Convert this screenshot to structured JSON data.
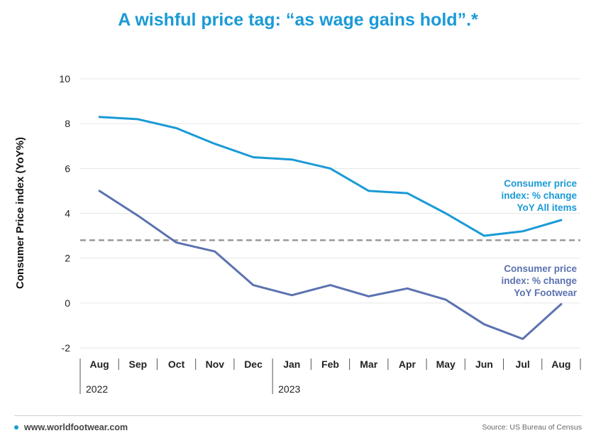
{
  "title": "A wishful price tag: “as wage gains hold”.*",
  "chart_data": {
    "type": "line",
    "ylabel": "Consumer Price index (YoY%)",
    "ylim": [
      -2,
      10
    ],
    "yticks": [
      -2,
      0,
      2,
      4,
      6,
      8,
      10
    ],
    "categories": [
      "Aug",
      "Sep",
      "Oct",
      "Nov",
      "Dec",
      "Jan",
      "Feb",
      "Mar",
      "Apr",
      "May",
      "Jun",
      "Jul",
      "Aug"
    ],
    "years": [
      {
        "label": "2022",
        "start_index": 0
      },
      {
        "label": "2023",
        "start_index": 5
      }
    ],
    "reference_line": 2.8,
    "grid": "horizontal",
    "series": [
      {
        "name": "Consumer price index: % change YoY All items",
        "label_lines": [
          "Consumer price",
          "index: % change",
          "YoY All items"
        ],
        "color": "#1a9ad6",
        "values": [
          8.3,
          8.2,
          7.8,
          7.1,
          6.5,
          6.4,
          6.0,
          5.0,
          4.9,
          4.0,
          3.0,
          3.2,
          3.7
        ]
      },
      {
        "name": "Consumer price index: % change YoY Footwear",
        "label_lines": [
          "Consumer price",
          "index: % change",
          "YoY Footwear"
        ],
        "color": "#5b72b0",
        "values": [
          5.0,
          3.9,
          2.7,
          2.3,
          0.8,
          0.35,
          0.8,
          0.3,
          0.65,
          0.15,
          -0.95,
          -1.6,
          -0.05
        ]
      }
    ]
  },
  "footer": {
    "website": "www.worldfootwear.com",
    "source": "Source: US Bureau of Census",
    "accent_color": "#1a9ad6"
  }
}
